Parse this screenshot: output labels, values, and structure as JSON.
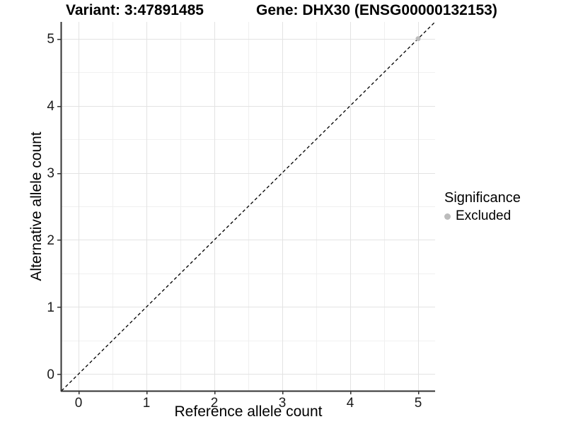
{
  "header": {
    "variant_title": "Variant: 3:47891485",
    "gene_title": "Gene: DHX30 (ENSG00000132153)"
  },
  "chart_data": {
    "type": "scatter",
    "xlabel": "Reference allele count",
    "ylabel": "Alternative allele count",
    "xlim": [
      -0.25,
      5.25
    ],
    "ylim": [
      -0.25,
      5.25
    ],
    "x_ticks": [
      0,
      1,
      2,
      3,
      4,
      5
    ],
    "y_ticks": [
      0,
      1,
      2,
      3,
      4,
      5
    ],
    "x_minor_ticks": [
      0.5,
      1.5,
      2.5,
      3.5,
      4.5
    ],
    "y_minor_ticks": [
      0.5,
      1.5,
      2.5,
      3.5,
      4.5
    ],
    "grid": "on",
    "identity_line": {
      "style": "dashed",
      "color": "#000000",
      "x1": -0.25,
      "y1": -0.25,
      "x2": 5.25,
      "y2": 5.25
    },
    "series": [
      {
        "name": "Excluded",
        "color": "#bcbcbc",
        "points": [
          {
            "x": 5,
            "y": 5
          }
        ]
      }
    ],
    "legend": {
      "title": "Significance",
      "position": "right",
      "items": [
        {
          "label": "Excluded",
          "color": "#bcbcbc"
        }
      ]
    }
  },
  "colors": {
    "grid_major": "#e3e3e3",
    "grid_minor": "#f0f0f0",
    "axis": "#333333",
    "tick_text": "#1a1a1a"
  }
}
